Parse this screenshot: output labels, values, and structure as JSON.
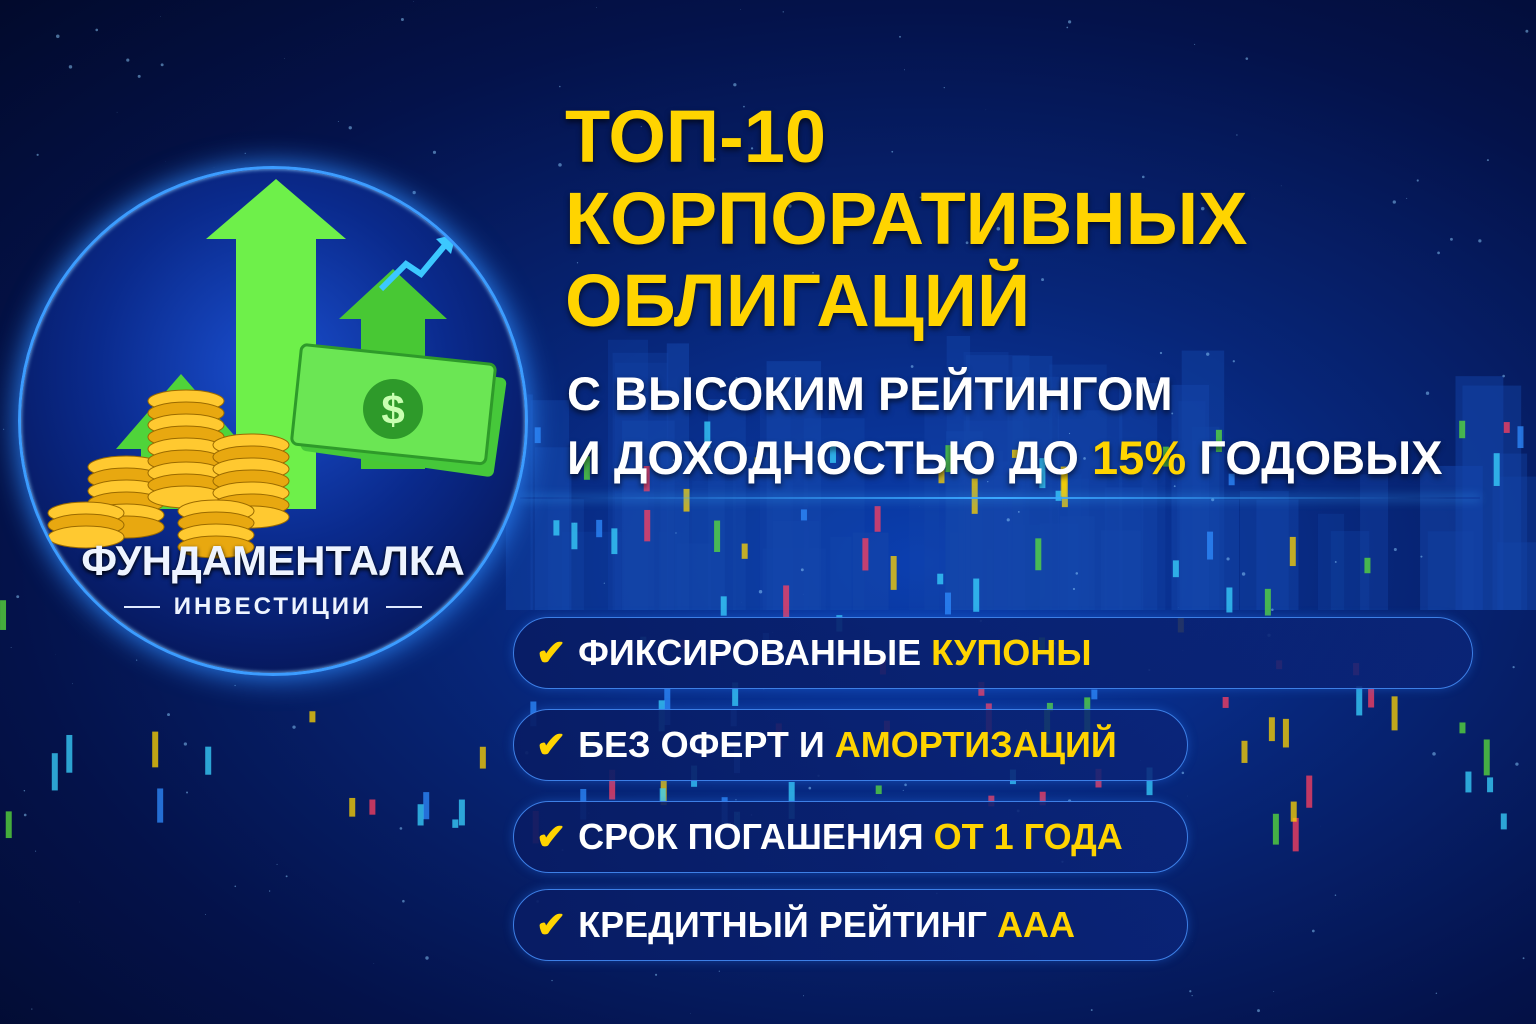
{
  "logo": {
    "name": "ФУНДАМЕНТАЛКА",
    "tagline": "ИНВЕСТИЦИИ"
  },
  "headline": {
    "line1": "ТОП-10",
    "line2": "КОРПОРАТИВНЫХ",
    "line3": "ОБЛИГАЦИЙ"
  },
  "subheadline": {
    "line1": "С ВЫСОКИМ РЕЙТИНГОМ",
    "line2_start": "И ДОХОДНОСТЬЮ ДО ",
    "line2_highlight": "15%",
    "line2_end": " ГОДОВЫХ"
  },
  "features": [
    {
      "text": "ФИКСИРОВАННЫЕ ",
      "highlight": "КУПОНЫ"
    },
    {
      "text": "БЕЗ ОФЕРТ И ",
      "highlight": "АМОРТИЗАЦИЙ"
    },
    {
      "text": "СРОК ПОГАШЕНИЯ ",
      "highlight": "ОТ 1 ГОДА"
    },
    {
      "text": "КРЕДИТНЫЙ РЕЙТИНГ ",
      "highlight": "AAA"
    }
  ],
  "icons": {
    "check": "checkmark-icon",
    "dollar": "dollar-bill-icon",
    "coins": "gold-coins-icon",
    "arrows": "growth-arrows-icon"
  },
  "colors": {
    "accent": "#ffd400",
    "background": "#072679",
    "glow": "#3aa8ff",
    "green": "#5be03a"
  }
}
